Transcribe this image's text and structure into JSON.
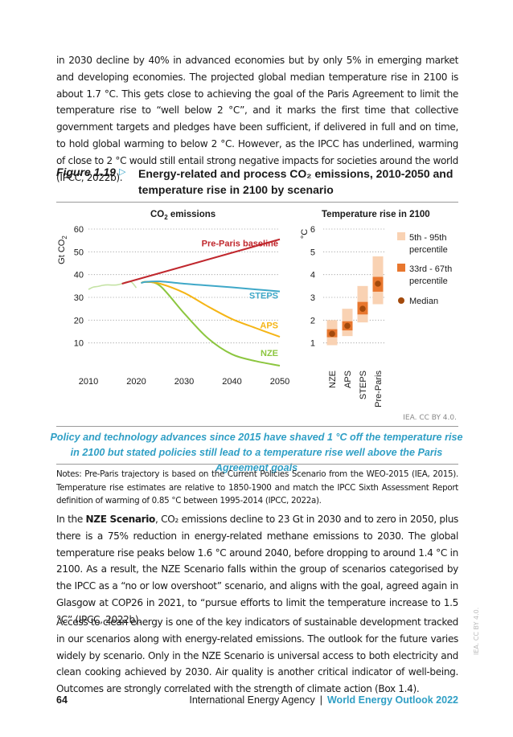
{
  "paragraphs": {
    "intro": "in 2030 decline by 40% in advanced economies but by only 5% in emerging market and developing economies. The projected global median temperature rise in 2100 is about 1.7 °C. This gets close to achieving the goal of the Paris Agreement to limit the temperature rise to “well below 2 °C”, and it marks the first time that collective government targets and pledges have been sufficient, if delivered in full and on time, to hold global warming to below 2 °C. However, as the IPCC has underlined, warming of close to 2 °C would still entail strong negative impacts for societies around the world (IPCC, 2022b).",
    "nze_lead": "In the ",
    "nze_bold": "NZE Scenario",
    "nze_rest": ", CO₂ emissions decline to 23 Gt in 2030 and to zero in 2050, plus there is a 75% reduction in energy-related methane emissions to 2030. The global temperature rise peaks below 1.6 °C around 2040, before dropping to around 1.4 °C in 2100. As a result, the NZE Scenario falls within the group of scenarios categorised by the IPCC as a “no or low overshoot” scenario, and aligns with the goal, agreed again in Glasgow at COP26 in 2021, to “pursue efforts to limit the temperature increase to 1.5 °C” (IPCC, 2022b).",
    "access": "Access to clean energy is one of the key indicators of sustainable development tracked in our scenarios along with energy-related emissions. The outlook for the future varies widely by scenario. Only in the NZE Scenario is universal access to both electricity and clean cooking achieved by 2030. Air quality is another critical indicator of well-being. Outcomes are strongly correlated with the strength of climate action (Box 1.4)."
  },
  "figure": {
    "label": "Figure 1.19",
    "arrow": "▷",
    "title": "Energy-related and process CO₂ emissions, 2010-2050 and temperature rise in 2100 by scenario",
    "credit": "IEA. CC BY 4.0.",
    "caption": "Policy and technology advances since 2015 have shaved 1 °C off the temperature rise in 2100 but stated policies still lead to a temperature rise well above the Paris Agreement goals",
    "notes": "Notes: Pre-Paris trajectory is based on the Current Policies Scenario from the WEO-2015 (IEA, 2015). Temperature rise estimates are relative to 1850-1900 and match the IPCC Sixth Assessment Report definition of warming of 0.85 °C between 1995-2014 (IPCC, 2022a)."
  },
  "chart_data": [
    {
      "type": "line",
      "title": "CO₂ emissions",
      "ylabel": "Gt CO₂",
      "xlim": [
        2010,
        2050
      ],
      "ylim": [
        0,
        60
      ],
      "xticks": [
        "2010",
        "2020",
        "2030",
        "2040",
        "2050"
      ],
      "yticks": [
        "10",
        "20",
        "30",
        "40",
        "50",
        "60"
      ],
      "grid": "horizontal dotted",
      "series": [
        {
          "name": "Historical",
          "color": "#c5e3a5",
          "x": [
            2010,
            2011,
            2012,
            2013,
            2014,
            2015,
            2016,
            2017,
            2018,
            2019,
            2020
          ],
          "y": [
            33.5,
            34.5,
            34.8,
            35.3,
            35.5,
            35.4,
            35.5,
            36.0,
            36.8,
            36.7,
            34.2
          ]
        },
        {
          "name": "Pre-Paris baseline",
          "color": "#c0272d",
          "x": [
            2017,
            2050
          ],
          "y": [
            36.0,
            55.5
          ]
        },
        {
          "name": "STEPS",
          "color": "#3fa8c8",
          "x": [
            2021,
            2022,
            2025,
            2030,
            2035,
            2040,
            2045,
            2050
          ],
          "y": [
            36.3,
            36.8,
            37.0,
            36.0,
            35.2,
            34.4,
            33.5,
            32.6
          ]
        },
        {
          "name": "APS",
          "color": "#f5b516",
          "x": [
            2021,
            2022,
            2025,
            2030,
            2035,
            2040,
            2045,
            2050
          ],
          "y": [
            36.3,
            36.8,
            36.0,
            32.0,
            26.0,
            20.5,
            16.5,
            12.7
          ]
        },
        {
          "name": "NZE",
          "color": "#8cc63f",
          "x": [
            2021,
            2022,
            2025,
            2030,
            2035,
            2040,
            2045,
            2050
          ],
          "y": [
            36.3,
            36.8,
            35.0,
            23.0,
            12.0,
            5.0,
            2.0,
            0.0
          ]
        }
      ]
    },
    {
      "type": "range",
      "title": "Temperature rise in 2100",
      "ylabel": "°C",
      "ylim": [
        0,
        6
      ],
      "yticks": [
        "1",
        "2",
        "3",
        "4",
        "5",
        "6"
      ],
      "categories": [
        "NZE",
        "APS",
        "STEPS",
        "Pre-Paris"
      ],
      "p5_95": [
        [
          0.9,
          2.0
        ],
        [
          1.3,
          2.5
        ],
        [
          1.9,
          3.5
        ],
        [
          2.7,
          4.8
        ]
      ],
      "p33_67": [
        [
          1.25,
          1.6
        ],
        [
          1.55,
          1.95
        ],
        [
          2.25,
          2.8
        ],
        [
          3.25,
          3.9
        ]
      ],
      "median": [
        1.4,
        1.75,
        2.5,
        3.6
      ],
      "colors": {
        "p5_95": "#f9d2b3",
        "p33_67": "#e8772e",
        "median": "#a34a0c"
      },
      "legend": [
        "5th - 95th percentile",
        "33rd - 67th percentile",
        "Median"
      ]
    }
  ],
  "chart_labels": {
    "left_title": "CO",
    "left_title_sub": "2",
    "left_title_rest": " emissions",
    "ylabel_left": "Gt CO",
    "ylabel_left_sub": "2",
    "right_title": "Temperature rise in 2100",
    "ylabel_right": "°C",
    "legend": {
      "p5_95_line1": "5th - 95th",
      "p5_95_line2": "percentile",
      "p33_67_line1": "33rd - 67th",
      "p33_67_line2": "percentile",
      "median": "Median"
    }
  },
  "footer": {
    "page": "64",
    "org": "International Energy Agency",
    "sep": "|",
    "pub": "World Energy Outlook 2022",
    "side": "IEA. CC BY 4.0."
  }
}
